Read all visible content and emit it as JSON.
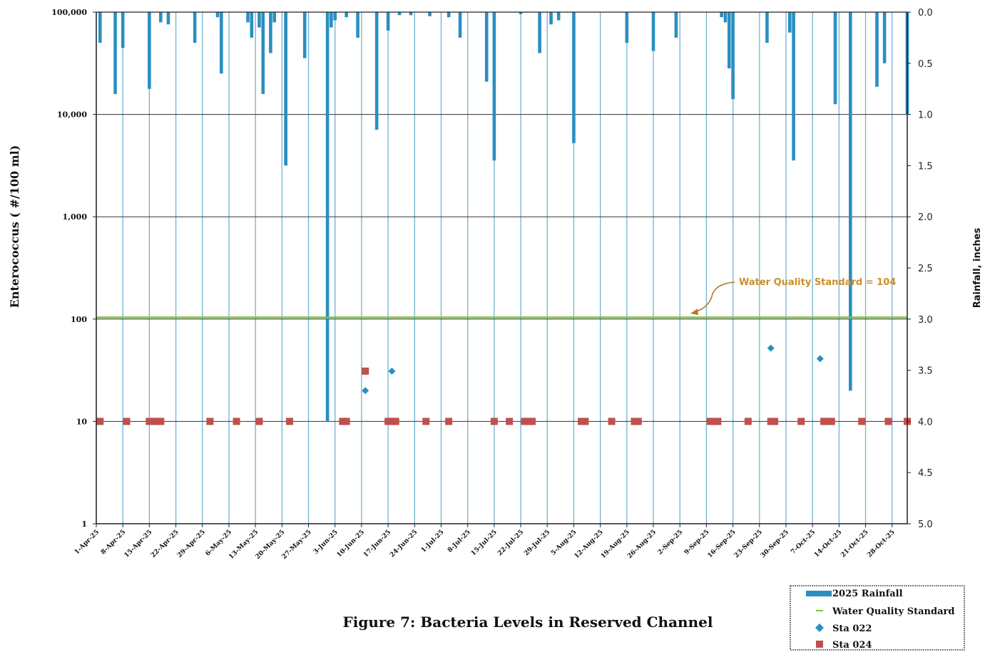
{
  "caption": "Figure 7: Bacteria Levels in Reserved Channel",
  "chart_data": {
    "type": "combo",
    "ylabel_left": "Enterococcus ( #/100 ml)",
    "ylabel_right": "Rainfall, inches",
    "left_axis": {
      "scale": "log",
      "ylim": [
        1,
        100000
      ],
      "ticks": [
        "1",
        "10",
        "100",
        "1,000",
        "10,000",
        "100,000"
      ]
    },
    "right_axis": {
      "scale": "linear",
      "ylim": [
        0,
        5
      ],
      "inverted": true,
      "ticks": [
        "0.0",
        "0.5",
        "1.0",
        "1.5",
        "2.0",
        "2.5",
        "3.0",
        "3.5",
        "4.0",
        "4.5",
        "5.0"
      ]
    },
    "x_tick_labels": [
      "1-Apr-25",
      "8-Apr-25",
      "15-Apr-25",
      "22-Apr-25",
      "29-Apr-25",
      "6-May-25",
      "13-May-25",
      "20-May-25",
      "27-May-25",
      "3-Jun-25",
      "10-Jun-25",
      "17-Jun-25",
      "24-Jun-25",
      "1-Jul-25",
      "8-Jul-25",
      "15-Jul-25",
      "22-Jul-25",
      "29-Jul-25",
      "5-Aug-25",
      "12-Aug-25",
      "19-Aug-25",
      "26-Aug-25",
      "2-Sep-25",
      "9-Sep-25",
      "16-Sep-25",
      "23-Sep-25",
      "30-Sep-25",
      "7-Oct-25",
      "14-Oct-25",
      "21-Oct-25",
      "28-Oct-25"
    ],
    "x_range": [
      "2025-04-01",
      "2025-11-01"
    ],
    "grid": "vertical weekly lines; horizontal lines at each decade",
    "annotation": {
      "text": "Water Quality Standard = 104",
      "value": 104
    },
    "series": [
      {
        "name": "2025 Rainfall",
        "type": "bar",
        "axis": "right",
        "color": "#2a8fc0",
        "points": [
          [
            "2025-04-02",
            0.3
          ],
          [
            "2025-04-06",
            0.8
          ],
          [
            "2025-04-08",
            0.35
          ],
          [
            "2025-04-15",
            0.75
          ],
          [
            "2025-04-18",
            0.1
          ],
          [
            "2025-04-20",
            0.12
          ],
          [
            "2025-04-27",
            0.3
          ],
          [
            "2025-05-03",
            0.05
          ],
          [
            "2025-05-04",
            0.6
          ],
          [
            "2025-05-11",
            0.1
          ],
          [
            "2025-05-12",
            0.25
          ],
          [
            "2025-05-14",
            0.15
          ],
          [
            "2025-05-15",
            0.8
          ],
          [
            "2025-05-17",
            0.4
          ],
          [
            "2025-05-18",
            0.1
          ],
          [
            "2025-05-21",
            1.5
          ],
          [
            "2025-05-26",
            0.45
          ],
          [
            "2025-06-01",
            4.0
          ],
          [
            "2025-06-02",
            0.15
          ],
          [
            "2025-06-03",
            0.08
          ],
          [
            "2025-06-06",
            0.05
          ],
          [
            "2025-06-09",
            0.25
          ],
          [
            "2025-06-14",
            1.15
          ],
          [
            "2025-06-17",
            0.18
          ],
          [
            "2025-06-20",
            0.03
          ],
          [
            "2025-06-23",
            0.03
          ],
          [
            "2025-06-28",
            0.04
          ],
          [
            "2025-07-03",
            0.05
          ],
          [
            "2025-07-06",
            0.25
          ],
          [
            "2025-07-13",
            0.68
          ],
          [
            "2025-07-15",
            1.45
          ],
          [
            "2025-07-22",
            0.02
          ],
          [
            "2025-07-27",
            0.4
          ],
          [
            "2025-07-30",
            0.12
          ],
          [
            "2025-08-01",
            0.08
          ],
          [
            "2025-08-05",
            1.28
          ],
          [
            "2025-08-19",
            0.3
          ],
          [
            "2025-08-26",
            0.38
          ],
          [
            "2025-09-01",
            0.25
          ],
          [
            "2025-09-13",
            0.05
          ],
          [
            "2025-09-14",
            0.1
          ],
          [
            "2025-09-15",
            0.55
          ],
          [
            "2025-09-16",
            0.85
          ],
          [
            "2025-09-25",
            0.3
          ],
          [
            "2025-10-01",
            0.2
          ],
          [
            "2025-10-02",
            1.45
          ],
          [
            "2025-10-13",
            0.9
          ],
          [
            "2025-10-17",
            3.7
          ],
          [
            "2025-10-24",
            0.73
          ],
          [
            "2025-10-26",
            0.5
          ],
          [
            "2025-11-01",
            1.0
          ]
        ]
      },
      {
        "name": "Water Quality Standard",
        "type": "line",
        "axis": "left",
        "color": "#7ec63a",
        "points": [
          [
            "2025-04-01",
            104
          ],
          [
            "2025-11-01",
            104
          ]
        ]
      },
      {
        "name": "Sta 022",
        "type": "scatter",
        "marker": "diamond",
        "axis": "left",
        "color": "#2a8fc0",
        "points": [
          [
            "2025-06-11",
            20
          ],
          [
            "2025-06-18",
            31
          ],
          [
            "2025-09-26",
            52
          ],
          [
            "2025-10-09",
            41
          ]
        ]
      },
      {
        "name": "Sta 024",
        "type": "scatter",
        "marker": "square",
        "axis": "left",
        "color": "#c0504d",
        "points": [
          [
            "2025-04-02",
            10
          ],
          [
            "2025-04-09",
            10
          ],
          [
            "2025-04-15",
            10
          ],
          [
            "2025-04-16",
            10
          ],
          [
            "2025-04-17",
            10
          ],
          [
            "2025-04-18",
            10
          ],
          [
            "2025-05-01",
            10
          ],
          [
            "2025-05-08",
            10
          ],
          [
            "2025-05-14",
            10
          ],
          [
            "2025-05-22",
            10
          ],
          [
            "2025-06-05",
            10
          ],
          [
            "2025-06-06",
            10
          ],
          [
            "2025-06-11",
            31
          ],
          [
            "2025-06-17",
            10
          ],
          [
            "2025-06-18",
            10
          ],
          [
            "2025-06-19",
            10
          ],
          [
            "2025-06-27",
            10
          ],
          [
            "2025-07-03",
            10
          ],
          [
            "2025-07-15",
            10
          ],
          [
            "2025-07-19",
            10
          ],
          [
            "2025-07-23",
            10
          ],
          [
            "2025-07-24",
            10
          ],
          [
            "2025-07-25",
            10
          ],
          [
            "2025-08-07",
            10
          ],
          [
            "2025-08-08",
            10
          ],
          [
            "2025-08-15",
            10
          ],
          [
            "2025-08-21",
            10
          ],
          [
            "2025-08-22",
            10
          ],
          [
            "2025-09-10",
            10
          ],
          [
            "2025-09-11",
            10
          ],
          [
            "2025-09-12",
            10
          ],
          [
            "2025-09-20",
            10
          ],
          [
            "2025-09-26",
            10
          ],
          [
            "2025-09-27",
            10
          ],
          [
            "2025-10-04",
            10
          ],
          [
            "2025-10-10",
            10
          ],
          [
            "2025-10-11",
            10
          ],
          [
            "2025-10-12",
            10
          ],
          [
            "2025-10-20",
            10
          ],
          [
            "2025-10-27",
            10
          ],
          [
            "2025-11-01",
            10
          ]
        ]
      }
    ]
  }
}
